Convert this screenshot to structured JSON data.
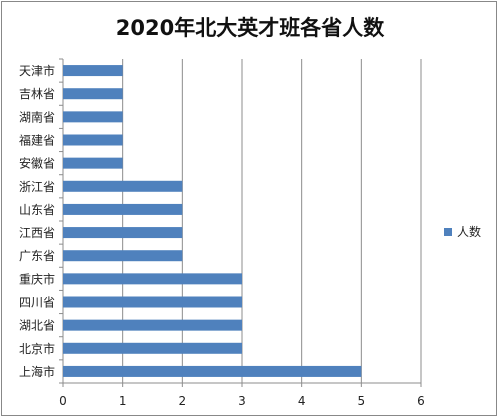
{
  "chart_data": {
    "type": "bar",
    "orientation": "horizontal",
    "title": "2020年北大英才班各省人数",
    "categories": [
      "天津市",
      "吉林省",
      "湖南省",
      "福建省",
      "安徽省",
      "浙江省",
      "山东省",
      "江西省",
      "广东省",
      "重庆市",
      "四川省",
      "湖北省",
      "北京市",
      "上海市"
    ],
    "series": [
      {
        "name": "人数",
        "values": [
          1,
          1,
          1,
          1,
          1,
          2,
          2,
          2,
          2,
          3,
          3,
          3,
          3,
          5
        ]
      }
    ],
    "xlim": [
      0,
      6
    ],
    "x_ticks": [
      "0",
      "1",
      "2",
      "3",
      "4",
      "5",
      "6"
    ],
    "xlabel": "",
    "ylabel": "",
    "grid": "vertical",
    "legend_position": "right",
    "bar_color": "#4F81BD"
  }
}
